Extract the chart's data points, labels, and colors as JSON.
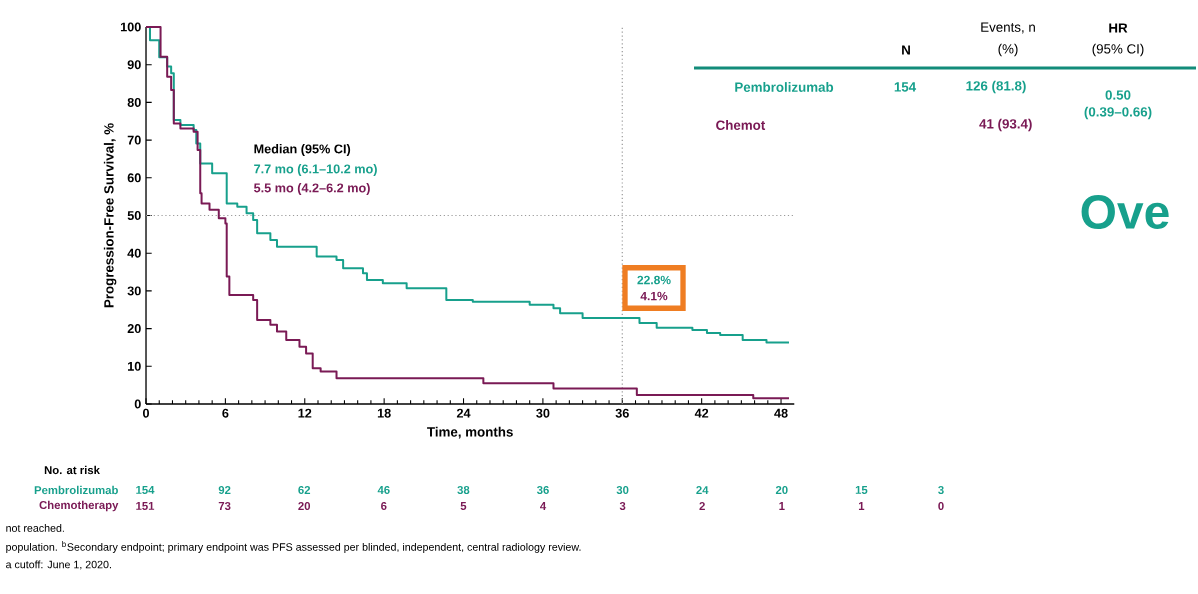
{
  "chart_data": {
    "type": "step",
    "xlabel": "Time, months",
    "ylabel": "Progression-Free Survival, %",
    "xlim": [
      0,
      49
    ],
    "ylim": [
      0,
      100
    ],
    "xticks": [
      0,
      6,
      12,
      18,
      24,
      30,
      36,
      42,
      48
    ],
    "yticks": [
      0,
      10,
      20,
      30,
      40,
      50,
      60,
      70,
      80,
      90,
      100
    ],
    "series": [
      {
        "name": "Pembrolizumab",
        "color": "#17a08c",
        "x": [
          0,
          0.3,
          1.0,
          1.6,
          1.9,
          2.1,
          2.6,
          3.6,
          3.8,
          4.1,
          5.0,
          6.1,
          6.9,
          7.6,
          8.1,
          8.4,
          9.4,
          9.9,
          12.9,
          14.4,
          14.9,
          16.4,
          16.7,
          17.9,
          19.7,
          22.7,
          24.7,
          29.0,
          30.8,
          31.3,
          33.0,
          37.3,
          38.6,
          41.3,
          42.4,
          43.4,
          45.1,
          46.9,
          48.6
        ],
        "values": [
          100,
          96.5,
          92,
          89.5,
          87.7,
          75.3,
          74,
          72.7,
          69.1,
          63.8,
          61.2,
          53.2,
          52.3,
          50.6,
          48.8,
          45.3,
          43.5,
          41.7,
          39.1,
          38.2,
          36,
          34.7,
          32.9,
          32,
          30.7,
          27.6,
          27.1,
          26.3,
          25.4,
          24.1,
          22.8,
          21.5,
          20.2,
          19.6,
          18.8,
          18.3,
          17,
          16.3,
          16.3
        ]
      },
      {
        "name": "Chemotherapy",
        "color": "#7a1a55",
        "x": [
          0,
          1.1,
          1.6,
          1.9,
          2.1,
          2.6,
          3.6,
          3.9,
          4.1,
          4.2,
          4.8,
          5.5,
          6.0,
          6.1,
          6.3,
          8.1,
          8.4,
          9.4,
          9.9,
          10.6,
          11.6,
          12.1,
          12.6,
          13.2,
          14.4,
          25.5,
          30.8,
          37.1,
          45.9,
          48.6
        ],
        "values": [
          100,
          92.1,
          86.8,
          83.3,
          74.4,
          73.1,
          72.2,
          67.4,
          55.9,
          53.2,
          51.5,
          49.3,
          47.9,
          33.8,
          28.9,
          27.6,
          22.3,
          21,
          19.2,
          17,
          15.2,
          13.4,
          9.5,
          8.6,
          6.8,
          5.5,
          4.1,
          2.4,
          1.5,
          1.5
        ]
      }
    ],
    "ref_lines": [
      {
        "axis": "y",
        "value": 50,
        "color": "#9a9a9a",
        "line_style": "dotted"
      },
      {
        "axis": "x",
        "value": 36,
        "color": "#9a9a9a",
        "line_style": "dotted"
      }
    ],
    "annotations": [
      "Median (95% CI)",
      "7.7 mo (6.1–10.2 mo)",
      "5.5 mo (4.2–6.2 mo)",
      "22.8%",
      "4.1%",
      "No. at risk",
      "154",
      "92",
      "62",
      "46",
      "38",
      "36",
      "30",
      "24",
      "20",
      "15",
      "3",
      "151",
      "73",
      "20",
      "6",
      "5",
      "4",
      "3",
      "2",
      "1",
      "1",
      "0",
      "not reached.",
      "population. $^{b}$Secondary endpoint; primary endpoint was PFS assessed per blinded, independent, central radiology review.",
      "a cutoff: June 1, 2020.",
      "N",
      "Events, n",
      "(%)",
      "HR",
      "(95% CI)",
      "Pembrolizumab",
      "154",
      "126 (81.8)",
      "0.50",
      "(0.39–0.66)",
      "Chemot",
      "41 (93.4)",
      "Ove"
    ]
  }
}
